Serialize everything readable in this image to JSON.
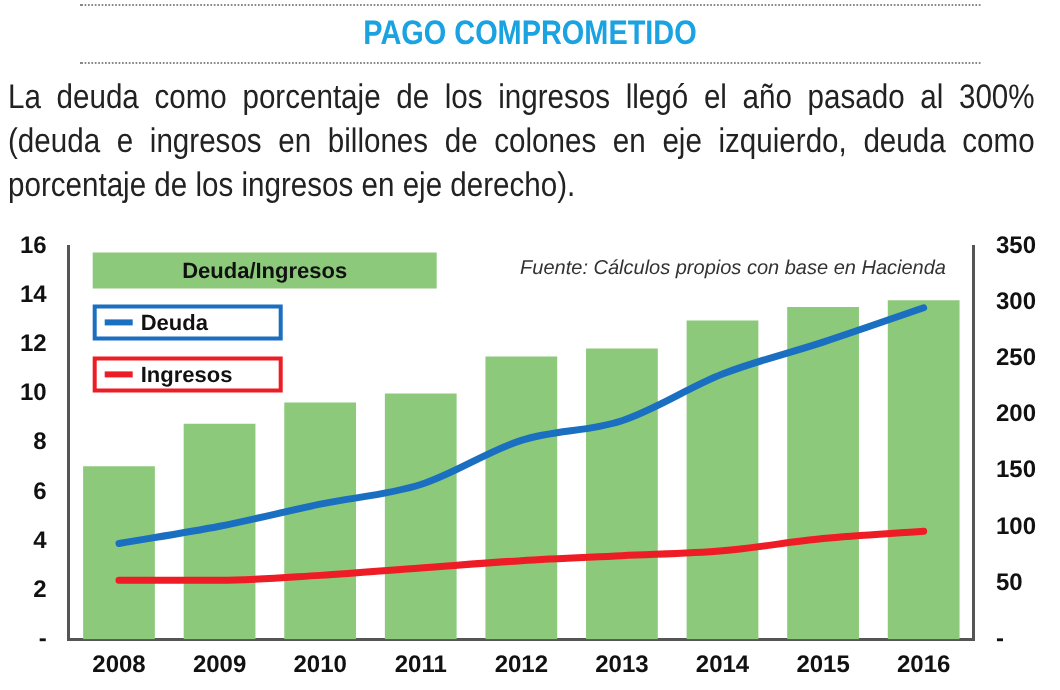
{
  "chart_data": {
    "type": "bar",
    "title": "PAGO COMPROMETIDO",
    "subtitle": "La deuda como porcentaje de los ingresos llegó el año pasado al 300% (deuda e ingresos en billones de colones en eje izquierdo, deuda como porcentaje de los ingresos en eje derecho).",
    "categories": [
      "2008",
      "2009",
      "2010",
      "2011",
      "2012",
      "2013",
      "2014",
      "2015",
      "2016"
    ],
    "series": [
      {
        "name": "Deuda/Ingresos",
        "axis": "y2",
        "color": "#8cc97a",
        "values": [
          154,
          192,
          211,
          219,
          252,
          259,
          284,
          296,
          302
        ]
      },
      {
        "name": "Deuda",
        "type": "line",
        "color": "#1a6fc1",
        "values": [
          3.9,
          4.6,
          5.5,
          6.3,
          8.1,
          8.9,
          10.8,
          12.1,
          13.5
        ]
      },
      {
        "name": "Ingresos",
        "type": "line",
        "color": "#ee1c25",
        "values": [
          2.4,
          2.4,
          2.6,
          2.9,
          3.2,
          3.4,
          3.6,
          4.1,
          4.4
        ]
      }
    ],
    "ylim": [
      0,
      16
    ],
    "yticks": [
      {
        "value": 0,
        "label": "-"
      },
      2,
      4,
      6,
      8,
      10,
      12,
      14,
      16
    ],
    "y2lim": [
      0,
      350
    ],
    "y2ticks": [
      {
        "value": 0,
        "label": "-"
      },
      50,
      100,
      150,
      200,
      250,
      300,
      350
    ],
    "annotations": [
      "Fuente: Cálculos propios con base en Hacienda"
    ],
    "legend": "top left",
    "grid": false,
    "marker": "none",
    "line_style": "solid"
  }
}
